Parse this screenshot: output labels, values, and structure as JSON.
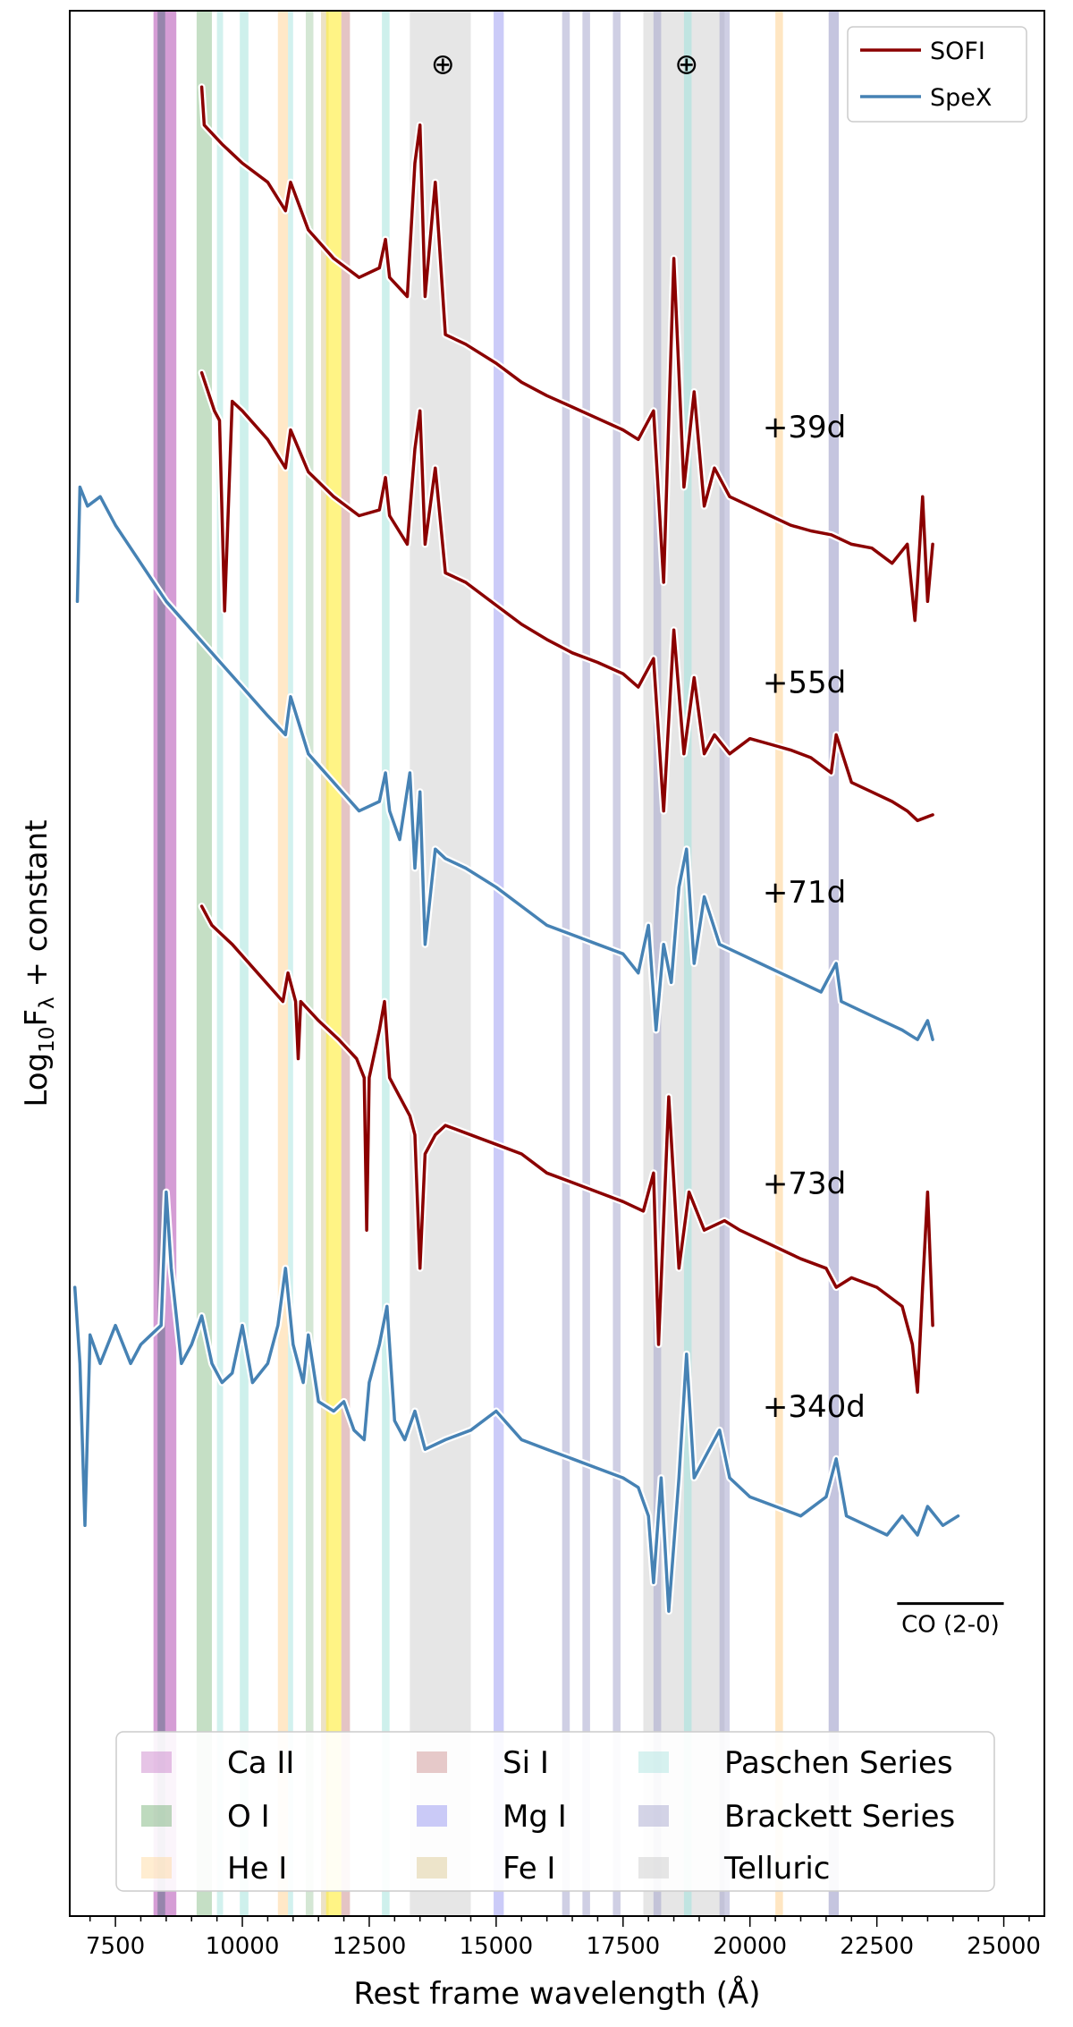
{
  "chart_data": {
    "type": "line",
    "title": "",
    "xlabel": "Rest frame wavelength (Å)",
    "ylabel_main": "Log",
    "ylabel_sub": "10",
    "ylabel_f": "F",
    "ylabel_lambda": "λ",
    "ylabel_rest": " + constant",
    "xlim": [
      6600,
      25800
    ],
    "ylim": [
      0,
      100
    ],
    "xticks": [
      7500,
      10000,
      12500,
      15000,
      17500,
      20000,
      22500,
      25000
    ],
    "xtick_labels": [
      "7500",
      "10000",
      "12500",
      "15000",
      "17500",
      "20000",
      "22500",
      "25000"
    ],
    "legend_top": [
      {
        "name": "SOFI",
        "color": "#8b0000"
      },
      {
        "name": "SpeX",
        "color": "#4682b4"
      }
    ],
    "line_legend": [
      {
        "name": "Ca II",
        "color": "#c77cc7"
      },
      {
        "name": "O I",
        "color": "#6fae6f"
      },
      {
        "name": "He I",
        "color": "#ffd699"
      },
      {
        "name": "Si I",
        "color": "#c98a8a"
      },
      {
        "name": "Mg I",
        "color": "#8c8cf0"
      },
      {
        "name": "Fe I",
        "color": "#d9c68c"
      },
      {
        "name": "Paschen Series",
        "color": "#a6e3dd"
      },
      {
        "name": "Brackett Series",
        "color": "#9f9fc9"
      },
      {
        "name": "Telluric",
        "color": "#c8c8c8"
      }
    ],
    "bands": [
      {
        "kind": "Ca II",
        "from": 8250,
        "to": 8700,
        "color": "#c77cc7",
        "opacity": 0.75
      },
      {
        "kind": "Brackett Series",
        "from": 8330,
        "to": 8480,
        "color": "#7a7a9a",
        "opacity": 0.7
      },
      {
        "kind": "O I",
        "from": 9100,
        "to": 9400,
        "color": "#6fae6f",
        "opacity": 0.4
      },
      {
        "kind": "Paschen Series",
        "from": 9500,
        "to": 9620,
        "color": "#a6e3dd",
        "opacity": 0.5
      },
      {
        "kind": "Paschen Series",
        "from": 9950,
        "to": 10120,
        "color": "#a6e3dd",
        "opacity": 0.55
      },
      {
        "kind": "He I",
        "from": 10700,
        "to": 10900,
        "color": "#ffd699",
        "opacity": 0.55
      },
      {
        "kind": "Paschen Series",
        "from": 10900,
        "to": 11000,
        "color": "#a6e3dd",
        "opacity": 0.5
      },
      {
        "kind": "O I",
        "from": 11250,
        "to": 11400,
        "color": "#6fae6f",
        "opacity": 0.3
      },
      {
        "kind": "Fe I",
        "from": 11550,
        "to": 11700,
        "color": "#d9c68c",
        "opacity": 0.5
      },
      {
        "kind": "He I",
        "from": 11650,
        "to": 11950,
        "color": "#ffee44",
        "opacity": 0.65
      },
      {
        "kind": "Si I",
        "from": 11950,
        "to": 12120,
        "color": "#c98a8a",
        "opacity": 0.5
      },
      {
        "kind": "Paschen Series",
        "from": 12750,
        "to": 12900,
        "color": "#a6e3dd",
        "opacity": 0.55
      },
      {
        "kind": "Telluric",
        "from": 13300,
        "to": 14500,
        "color": "#c8c8c8",
        "opacity": 0.45
      },
      {
        "kind": "Mg I",
        "from": 14950,
        "to": 15150,
        "color": "#8c8cf0",
        "opacity": 0.45
      },
      {
        "kind": "Brackett Series",
        "from": 16300,
        "to": 16450,
        "color": "#9f9fc9",
        "opacity": 0.5
      },
      {
        "kind": "Brackett Series",
        "from": 16700,
        "to": 16850,
        "color": "#9f9fc9",
        "opacity": 0.5
      },
      {
        "kind": "Brackett Series",
        "from": 17300,
        "to": 17450,
        "color": "#9f9fc9",
        "opacity": 0.5
      },
      {
        "kind": "Telluric",
        "from": 17900,
        "to": 19500,
        "color": "#c8c8c8",
        "opacity": 0.45
      },
      {
        "kind": "Brackett Series",
        "from": 18100,
        "to": 18250,
        "color": "#9f9fc9",
        "opacity": 0.5
      },
      {
        "kind": "Paschen Series",
        "from": 18700,
        "to": 18850,
        "color": "#a6e3dd",
        "opacity": 0.6
      },
      {
        "kind": "Brackett Series",
        "from": 19400,
        "to": 19600,
        "color": "#9f9fc9",
        "opacity": 0.5
      },
      {
        "kind": "He I",
        "from": 20500,
        "to": 20650,
        "color": "#ffd699",
        "opacity": 0.6
      },
      {
        "kind": "Brackett Series",
        "from": 21550,
        "to": 21750,
        "color": "#9f9fc9",
        "opacity": 0.6
      }
    ],
    "telluric_symbols": [
      {
        "x": 13950,
        "y": 96.7,
        "label": "⊕"
      },
      {
        "x": 18750,
        "y": 96.7,
        "label": "⊕"
      }
    ],
    "series": [
      {
        "name": "+39d",
        "instrument": "SOFI",
        "color": "#8b0000",
        "label": "+39d",
        "label_x": 20250,
        "label_y": 77.6,
        "x": [
          9200,
          9250,
          9600,
          10000,
          10500,
          10850,
          10950,
          11300,
          11800,
          12300,
          12700,
          12820,
          12900,
          13250,
          13400,
          13500,
          13600,
          13800,
          14000,
          14400,
          15000,
          15500,
          16000,
          16500,
          17000,
          17500,
          17800,
          18100,
          18300,
          18500,
          18700,
          18900,
          19100,
          19300,
          19600,
          20000,
          20400,
          20800,
          21200,
          21600,
          22000,
          22400,
          22800,
          23100,
          23250,
          23300,
          23400,
          23500,
          23600
        ],
        "y": [
          96.0,
          94.0,
          93.0,
          92.0,
          91.0,
          89.5,
          91.0,
          88.5,
          87.0,
          86.0,
          86.5,
          88.0,
          86.0,
          85.0,
          92.0,
          94.0,
          85.0,
          91.0,
          83.0,
          82.5,
          81.5,
          80.5,
          79.8,
          79.2,
          78.6,
          78.0,
          77.5,
          79.0,
          70.0,
          87.0,
          75.0,
          80.0,
          74.0,
          76.0,
          74.5,
          74.0,
          73.5,
          73.0,
          72.7,
          72.5,
          72.0,
          71.8,
          71.0,
          72.0,
          68.0,
          70.0,
          74.5,
          69.0,
          72.0
        ]
      },
      {
        "name": "+55d",
        "instrument": "SOFI",
        "color": "#8b0000",
        "label": "+55d",
        "label_x": 20250,
        "label_y": 64.2,
        "x": [
          9200,
          9450,
          9550,
          9650,
          9800,
          10000,
          10500,
          10850,
          10950,
          11300,
          11800,
          12300,
          12700,
          12820,
          12900,
          13250,
          13400,
          13500,
          13600,
          13800,
          14000,
          14400,
          15000,
          15500,
          16000,
          16500,
          17000,
          17500,
          17800,
          18100,
          18300,
          18500,
          18700,
          18900,
          19100,
          19300,
          19600,
          20000,
          20400,
          20800,
          21200,
          21600,
          21700,
          22000,
          22400,
          22800,
          23100,
          23300,
          23600
        ],
        "y": [
          81.0,
          79.0,
          78.5,
          68.5,
          79.5,
          79.0,
          77.5,
          76.0,
          78.0,
          75.8,
          74.5,
          73.5,
          73.8,
          75.5,
          73.5,
          72.0,
          77.0,
          79.0,
          72.0,
          76.0,
          70.5,
          70.0,
          68.8,
          67.8,
          67.0,
          66.3,
          65.8,
          65.2,
          64.5,
          66.0,
          58.0,
          67.5,
          61.0,
          65.0,
          61.0,
          62.0,
          61.0,
          61.8,
          61.5,
          61.2,
          60.8,
          60.0,
          62.0,
          59.5,
          59.0,
          58.5,
          58.0,
          57.5,
          57.8
        ]
      },
      {
        "name": "+71d",
        "instrument": "SpeX",
        "color": "#4682b4",
        "label": "+71d",
        "label_x": 20250,
        "label_y": 53.2,
        "x": [
          6750,
          6800,
          6950,
          7200,
          7500,
          8000,
          8500,
          9000,
          9500,
          10000,
          10500,
          10850,
          10950,
          11300,
          11800,
          12300,
          12700,
          12820,
          12900,
          13100,
          13300,
          13400,
          13500,
          13600,
          13800,
          14000,
          14400,
          15000,
          15500,
          16000,
          16500,
          17000,
          17500,
          17800,
          18000,
          18150,
          18300,
          18450,
          18600,
          18750,
          18900,
          19100,
          19400,
          19800,
          20200,
          20600,
          21000,
          21400,
          21700,
          21800,
          22200,
          22600,
          23000,
          23300,
          23500,
          23600
        ],
        "y": [
          69.0,
          75.0,
          74.0,
          74.5,
          73.0,
          71.0,
          69.0,
          67.5,
          66.0,
          64.5,
          63.0,
          62.0,
          64.0,
          61.0,
          59.5,
          58.0,
          58.5,
          60.0,
          58.0,
          56.5,
          60.0,
          55.0,
          59.0,
          51.0,
          56.0,
          55.5,
          55.0,
          54.0,
          53.0,
          52.0,
          51.5,
          51.0,
          50.5,
          49.5,
          52.0,
          46.5,
          51.0,
          49.0,
          54.0,
          56.0,
          50.0,
          53.5,
          51.0,
          50.5,
          50.0,
          49.5,
          49.0,
          48.5,
          50.0,
          48.0,
          47.5,
          47.0,
          46.5,
          46.0,
          47.0,
          46.0
        ]
      },
      {
        "name": "+73d",
        "instrument": "SOFI",
        "color": "#8b0000",
        "label": "+73d",
        "label_x": 20250,
        "label_y": 37.9,
        "x": [
          9200,
          9400,
          9800,
          10300,
          10800,
          10900,
          11050,
          11100,
          11150,
          11500,
          11900,
          12250,
          12400,
          12450,
          12500,
          12700,
          12800,
          12900,
          13100,
          13300,
          13400,
          13500,
          13600,
          13800,
          14000,
          14500,
          15000,
          15500,
          16000,
          16500,
          17000,
          17500,
          17900,
          18100,
          18200,
          18400,
          18600,
          18800,
          19100,
          19500,
          19800,
          20200,
          20600,
          21000,
          21500,
          21700,
          22000,
          22500,
          23000,
          23200,
          23300,
          23400,
          23500,
          23600
        ],
        "y": [
          53.0,
          52.0,
          51.0,
          49.5,
          48.0,
          49.5,
          48.0,
          45.0,
          48.0,
          47.0,
          46.0,
          45.0,
          44.0,
          36.0,
          44.0,
          46.5,
          48.0,
          44.0,
          43.0,
          42.0,
          41.0,
          34.0,
          40.0,
          41.0,
          41.5,
          41.0,
          40.5,
          40.0,
          39.0,
          38.5,
          38.0,
          37.5,
          37.0,
          39.0,
          30.0,
          43.0,
          34.0,
          38.0,
          36.0,
          36.5,
          36.0,
          35.5,
          35.0,
          34.5,
          34.0,
          33.0,
          33.5,
          33.0,
          32.0,
          30.0,
          27.5,
          33.0,
          38.0,
          31.0
        ]
      },
      {
        "name": "+340d",
        "instrument": "SpeX",
        "color": "#4682b4",
        "label": "+340d",
        "label_x": 20250,
        "label_y": 26.2,
        "x": [
          6700,
          6800,
          6900,
          7000,
          7200,
          7500,
          7800,
          8000,
          8200,
          8400,
          8500,
          8600,
          8800,
          9000,
          9200,
          9400,
          9600,
          9800,
          10000,
          10200,
          10500,
          10700,
          10850,
          11000,
          11200,
          11300,
          11500,
          11800,
          12000,
          12200,
          12400,
          12500,
          12700,
          12850,
          13000,
          13200,
          13400,
          13600,
          14000,
          14500,
          15000,
          15500,
          16000,
          16500,
          17000,
          17500,
          17800,
          18000,
          18100,
          18250,
          18400,
          18600,
          18750,
          18900,
          19100,
          19400,
          19600,
          20000,
          20500,
          21000,
          21500,
          21700,
          21900,
          22300,
          22700,
          23000,
          23300,
          23500,
          23800,
          24100
        ],
        "y": [
          33.0,
          29.0,
          20.5,
          30.5,
          29.0,
          31.0,
          29.0,
          30.0,
          30.5,
          31.0,
          38.0,
          34.0,
          29.0,
          30.0,
          31.5,
          29.0,
          28.0,
          28.5,
          31.0,
          28.0,
          29.0,
          31.0,
          34.0,
          30.0,
          28.0,
          30.5,
          27.0,
          26.5,
          27.0,
          25.5,
          25.0,
          28.0,
          30.0,
          32.0,
          26.0,
          25.0,
          26.5,
          24.5,
          25.0,
          25.5,
          26.5,
          25.0,
          24.5,
          24.0,
          23.5,
          23.0,
          22.5,
          21.0,
          17.5,
          23.0,
          16.0,
          23.0,
          29.5,
          23.0,
          24.0,
          25.5,
          23.0,
          22.0,
          21.5,
          21.0,
          22.0,
          24.0,
          21.0,
          20.5,
          20.0,
          21.0,
          20.0,
          21.5,
          20.5,
          21.0
        ]
      }
    ],
    "co_label": "CO (2-0)",
    "co_bar": {
      "from": 22900,
      "to": 25000,
      "y": 16.4
    }
  }
}
